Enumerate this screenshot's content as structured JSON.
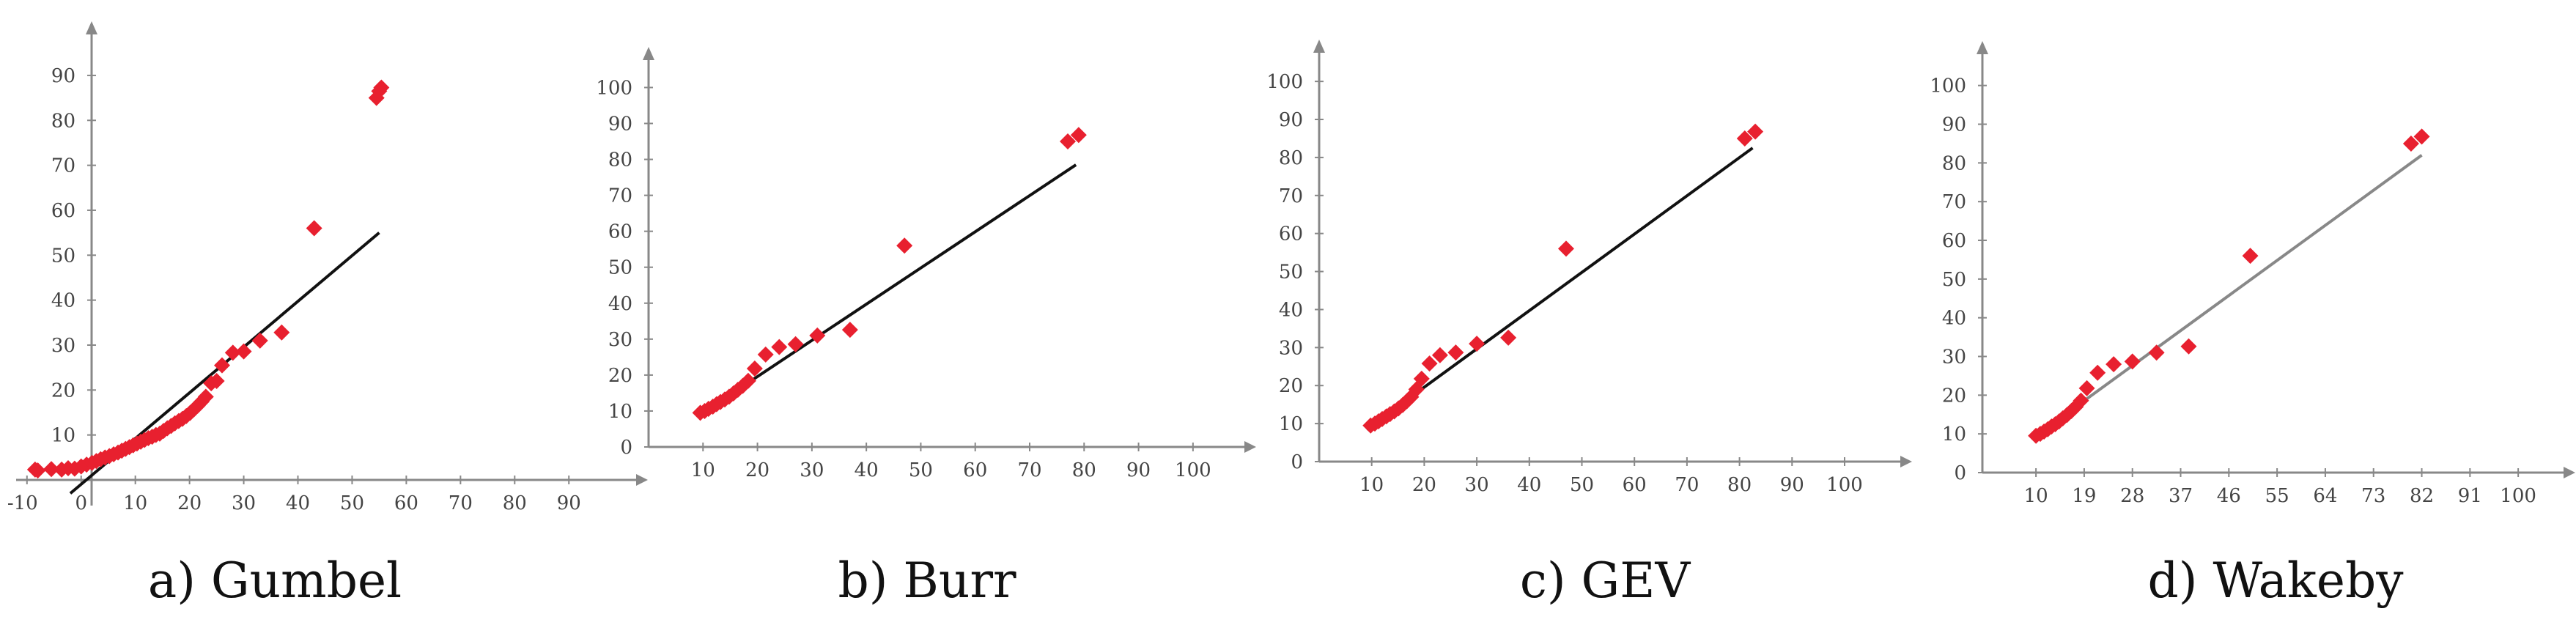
{
  "figure": {
    "point_color": "#e8202f",
    "axis_color": "#888888"
  },
  "chart_data": [
    {
      "type": "scatter",
      "caption": "a) Gumbel",
      "x_ticks": [
        -10,
        0,
        10,
        20,
        30,
        40,
        50,
        60,
        70,
        80,
        90
      ],
      "y_ticks": [
        10,
        20,
        30,
        40,
        50,
        60,
        70,
        80,
        90
      ],
      "xlim": [
        -12,
        97
      ],
      "ylim": [
        0,
        97
      ],
      "line_color": "#111111",
      "fit_line": [
        [
          -2,
          -3
        ],
        [
          55,
          55
        ]
      ],
      "points": [
        [
          -8.5,
          2.3
        ],
        [
          -8.0,
          2.1
        ],
        [
          -5.5,
          2.4
        ],
        [
          -3.6,
          2.3
        ],
        [
          -2.4,
          2.6
        ],
        [
          -1.2,
          2.5
        ],
        [
          0.0,
          3.0
        ],
        [
          1.0,
          3.4
        ],
        [
          2.0,
          3.8
        ],
        [
          2.8,
          4.2
        ],
        [
          3.6,
          4.6
        ],
        [
          4.4,
          5.0
        ],
        [
          5.2,
          5.3
        ],
        [
          6.0,
          5.7
        ],
        [
          6.8,
          6.1
        ],
        [
          7.5,
          6.5
        ],
        [
          8.2,
          6.9
        ],
        [
          8.9,
          7.3
        ],
        [
          9.6,
          7.7
        ],
        [
          10.3,
          8.1
        ],
        [
          11.0,
          8.5
        ],
        [
          11.7,
          8.9
        ],
        [
          12.4,
          9.3
        ],
        [
          13.1,
          9.6
        ],
        [
          13.8,
          10.0
        ],
        [
          14.5,
          10.3
        ],
        [
          15.2,
          10.9
        ],
        [
          15.9,
          11.5
        ],
        [
          16.6,
          12.0
        ],
        [
          17.3,
          12.6
        ],
        [
          18.0,
          13.1
        ],
        [
          18.7,
          13.6
        ],
        [
          19.4,
          14.2
        ],
        [
          20.1,
          14.9
        ],
        [
          20.8,
          15.7
        ],
        [
          21.5,
          16.5
        ],
        [
          22.2,
          17.4
        ],
        [
          23.0,
          18.5
        ],
        [
          24.0,
          21.5
        ],
        [
          25.0,
          22.0
        ],
        [
          26.0,
          25.5
        ],
        [
          28.0,
          28.3
        ],
        [
          30.0,
          28.6
        ],
        [
          33.0,
          31.0
        ],
        [
          37.0,
          32.8
        ],
        [
          43.0,
          56.0
        ],
        [
          54.5,
          85.0
        ],
        [
          55.0,
          86.5
        ],
        [
          55.4,
          87.3
        ]
      ]
    },
    {
      "type": "scatter",
      "caption": "b) Burr",
      "x_ticks": [
        10,
        20,
        30,
        40,
        50,
        60,
        70,
        80,
        90,
        100
      ],
      "y_ticks": [
        0,
        10,
        20,
        30,
        40,
        50,
        60,
        70,
        80,
        90,
        100
      ],
      "xlim": [
        0,
        105
      ],
      "ylim": [
        0,
        106
      ],
      "line_color": "#111111",
      "fit_line": [
        [
          9,
          8.5
        ],
        [
          78.5,
          78.5
        ]
      ],
      "points": [
        [
          9.5,
          9.5
        ],
        [
          10.3,
          10.0
        ],
        [
          11.0,
          10.6
        ],
        [
          11.8,
          11.2
        ],
        [
          12.5,
          11.9
        ],
        [
          13.2,
          12.5
        ],
        [
          14.0,
          13.2
        ],
        [
          14.8,
          14.0
        ],
        [
          15.6,
          14.9
        ],
        [
          16.4,
          15.9
        ],
        [
          17.3,
          17.0
        ],
        [
          18.3,
          18.4
        ],
        [
          19.5,
          21.8
        ],
        [
          21.5,
          25.7
        ],
        [
          24.0,
          27.8
        ],
        [
          27.0,
          28.6
        ],
        [
          31.0,
          31.0
        ],
        [
          37.0,
          32.6
        ],
        [
          47.0,
          56.0
        ],
        [
          77.0,
          85.0
        ],
        [
          79.0,
          86.8
        ]
      ]
    },
    {
      "type": "scatter",
      "caption": "c) GEV",
      "x_ticks": [
        10,
        20,
        30,
        40,
        50,
        60,
        70,
        80,
        90,
        100
      ],
      "y_ticks": [
        0,
        10,
        20,
        30,
        40,
        50,
        60,
        70,
        80,
        90,
        100
      ],
      "xlim": [
        0,
        106
      ],
      "ylim": [
        0,
        106
      ],
      "line_color": "#111111",
      "fit_line": [
        [
          9,
          8.5
        ],
        [
          82.5,
          82.5
        ]
      ],
      "points": [
        [
          9.8,
          9.5
        ],
        [
          10.6,
          10.0
        ],
        [
          11.3,
          10.6
        ],
        [
          12.0,
          11.2
        ],
        [
          12.8,
          11.9
        ],
        [
          13.5,
          12.5
        ],
        [
          14.3,
          13.2
        ],
        [
          15.1,
          14.0
        ],
        [
          15.9,
          14.9
        ],
        [
          16.7,
          15.9
        ],
        [
          17.5,
          17.0
        ],
        [
          18.5,
          19.0
        ],
        [
          19.5,
          21.8
        ],
        [
          21.0,
          25.8
        ],
        [
          23.0,
          28.0
        ],
        [
          26.0,
          28.7
        ],
        [
          30.0,
          31.0
        ],
        [
          36.0,
          32.6
        ],
        [
          47.0,
          56.0
        ],
        [
          81.0,
          85.0
        ],
        [
          83.0,
          86.8
        ]
      ]
    },
    {
      "type": "scatter",
      "caption": "d) Wakeby",
      "x_ticks": [
        10,
        19,
        28,
        37,
        46,
        55,
        64,
        73,
        82,
        91,
        100
      ],
      "y_ticks": [
        0,
        10,
        20,
        30,
        40,
        50,
        60,
        70,
        80,
        90,
        100
      ],
      "xlim": [
        0,
        106
      ],
      "ylim": [
        0,
        106
      ],
      "line_color": "#888888",
      "fit_line": [
        [
          10,
          9.5
        ],
        [
          82,
          82
        ]
      ],
      "points": [
        [
          10.0,
          9.5
        ],
        [
          10.8,
          10.0
        ],
        [
          11.5,
          10.6
        ],
        [
          12.2,
          11.2
        ],
        [
          12.9,
          11.9
        ],
        [
          13.6,
          12.5
        ],
        [
          14.3,
          13.2
        ],
        [
          15.0,
          14.0
        ],
        [
          15.8,
          14.9
        ],
        [
          16.6,
          15.9
        ],
        [
          17.4,
          17.0
        ],
        [
          18.4,
          18.6
        ],
        [
          19.5,
          21.8
        ],
        [
          21.5,
          25.8
        ],
        [
          24.5,
          28.0
        ],
        [
          28.0,
          28.7
        ],
        [
          32.5,
          31.0
        ],
        [
          38.5,
          32.6
        ],
        [
          50.0,
          56.0
        ],
        [
          80.0,
          85.0
        ],
        [
          82.0,
          86.8
        ]
      ]
    }
  ]
}
